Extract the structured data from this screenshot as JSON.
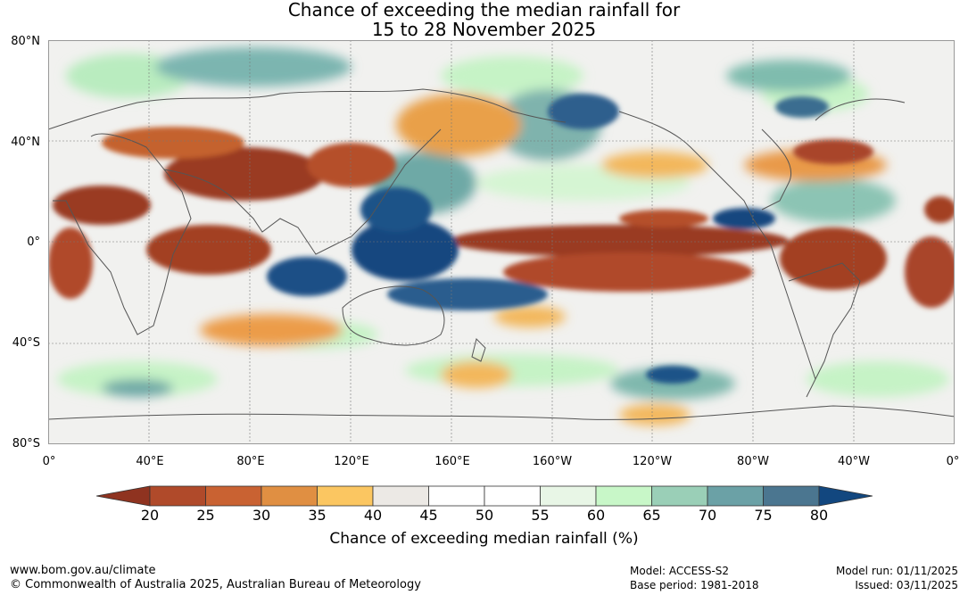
{
  "title": {
    "line1": "Chance of exceeding the median rainfall for",
    "line2": "15 to 28 November 2025"
  },
  "map": {
    "lat_labels": [
      "80°N",
      "40°N",
      "0°",
      "40°S",
      "80°S"
    ],
    "lon_labels": [
      "0°",
      "40°E",
      "80°E",
      "120°E",
      "160°E",
      "160°W",
      "120°W",
      "80°W",
      "40°W",
      "0°"
    ]
  },
  "colorbar": {
    "ticks": [
      "20",
      "25",
      "30",
      "35",
      "40",
      "45",
      "50",
      "55",
      "60",
      "65",
      "70",
      "75",
      "80"
    ],
    "low_color": "#8f3320",
    "high_color": "#12477f",
    "colors": [
      "#b04a2a",
      "#c96232",
      "#e08f42",
      "#fbc661",
      "#ece9e5",
      "#ffffff",
      "#ffffff",
      "#e8f6e6",
      "#c8f7c8",
      "#9acfb7",
      "#6ba1a6",
      "#4b7690"
    ],
    "label": "Chance of exceeding median rainfall (%)"
  },
  "footer": {
    "url": "www.bom.gov.au/climate",
    "copyright": "© Commonwealth of Australia 2025, Australian Bureau of Meteorology",
    "model": "Model: ACCESS-S2",
    "base_period": "Base period: 1981-2018",
    "model_run": "Model run: 01/11/2025",
    "issued": "Issued: 03/11/2025"
  }
}
